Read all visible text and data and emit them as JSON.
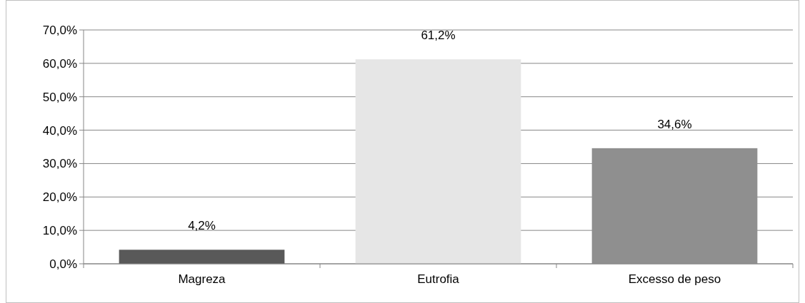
{
  "chart_data": {
    "type": "bar",
    "categories": [
      "Magreza",
      "Eutrofia",
      "Excesso de peso"
    ],
    "values": [
      4.2,
      61.2,
      34.6
    ],
    "colors": [
      "#595959",
      "#e6e6e6",
      "#8f8f8f"
    ],
    "value_labels": [
      "4,2%",
      "61,2%",
      "34,6%"
    ],
    "ylim": [
      0,
      70
    ],
    "yticks": [
      {
        "value": 0,
        "label": "0,0%"
      },
      {
        "value": 10,
        "label": "10,0%"
      },
      {
        "value": 20,
        "label": "20,0%"
      },
      {
        "value": 30,
        "label": "30,0%"
      },
      {
        "value": 40,
        "label": "40,0%"
      },
      {
        "value": 50,
        "label": "50,0%"
      },
      {
        "value": 60,
        "label": "60,0%"
      },
      {
        "value": 70,
        "label": "70,0%"
      }
    ],
    "grid": "y"
  }
}
